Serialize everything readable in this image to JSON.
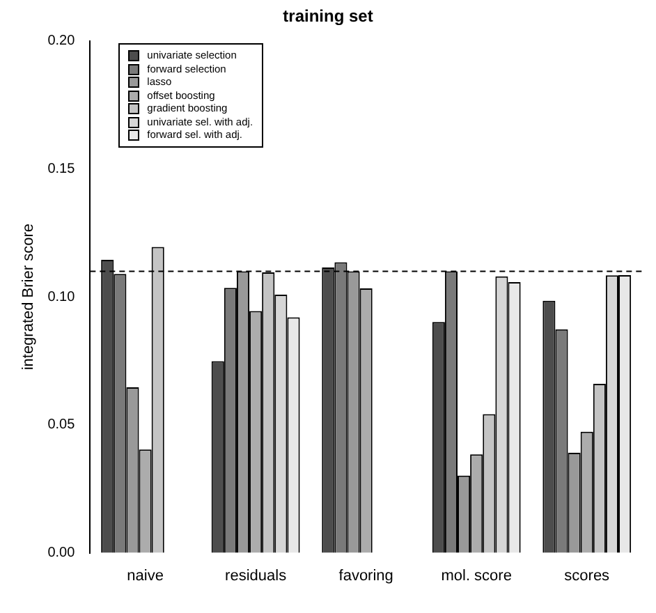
{
  "chart_data": {
    "type": "bar",
    "title": "training set",
    "ylabel": "integrated Brier score",
    "categories": [
      "naive",
      "residuals",
      "favoring",
      "mol. score",
      "scores"
    ],
    "series": [
      {
        "name": "univariate selection",
        "color": "#4d4d4d",
        "values": [
          0.1145,
          0.0749,
          0.1115,
          0.0902,
          0.0985
        ]
      },
      {
        "name": "forward selection",
        "color": "#7a7a7a",
        "values": [
          0.109,
          0.1035,
          0.1135,
          0.11,
          0.0873
        ]
      },
      {
        "name": "lasso",
        "color": "#999999",
        "values": [
          0.0647,
          0.11,
          0.11,
          0.0302,
          0.0391
        ]
      },
      {
        "name": "offset boosting",
        "color": "#acacac",
        "values": [
          0.0404,
          0.0945,
          0.1033,
          0.0385,
          0.0473
        ]
      },
      {
        "name": "gradient boosting",
        "color": "#c4c4c4",
        "values": [
          0.1195,
          0.1096,
          null,
          0.0542,
          0.066
        ]
      },
      {
        "name": "univariate sel. with adj.",
        "color": "#d6d6d6",
        "values": [
          null,
          0.1009,
          null,
          0.108,
          0.1084
        ]
      },
      {
        "name": "forward sel. with adj.",
        "color": "#e8e8e8",
        "values": [
          null,
          0.092,
          null,
          0.1058,
          0.1085
        ]
      }
    ],
    "ylim": [
      0,
      0.2
    ],
    "yticks": [
      {
        "value": 0,
        "label": "0.00"
      },
      {
        "value": 0.05,
        "label": "0.05"
      },
      {
        "value": 0.1,
        "label": "0.10"
      },
      {
        "value": 0.15,
        "label": "0.15"
      },
      {
        "value": 0.2,
        "label": "0.20"
      }
    ],
    "ref_lines": [
      {
        "axis": "y",
        "value": 0.11,
        "color": "#000000",
        "line_style": "dashed"
      }
    ],
    "legend": "top left",
    "grid": false
  }
}
